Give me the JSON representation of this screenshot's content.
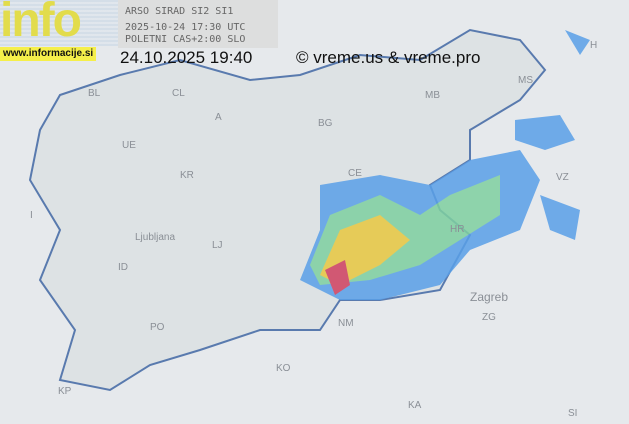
{
  "header": {
    "logo_text": "info",
    "website": "www.informacije.si",
    "source": "ARSO SIRAD SI2 SI1",
    "utc_time": "2025-10-24 17:30 UTC",
    "local_time_note": "POLETNI CAS+2:00 SLO",
    "local_datetime": "24.10.2025 19:40",
    "copyright": "© vreme.us & vreme.pro"
  },
  "map": {
    "labels": [
      "BL",
      "CL",
      "A",
      "MB",
      "MS",
      "H",
      "UE",
      "BG",
      "KR",
      "CE",
      "I",
      "Ljubljana",
      "LJ",
      "ID",
      "NM",
      "PO",
      "KO",
      "KP",
      "HR",
      "Zagreb",
      "ZG",
      "KA",
      "SI",
      "VZ"
    ],
    "colors": {
      "border": "#4a6fa8",
      "land": "#dfe3e6",
      "radar_low": "#5aa0e8",
      "radar_mid": "#7fd0a0",
      "radar_high": "#e8c840",
      "radar_max": "#d04060"
    }
  }
}
